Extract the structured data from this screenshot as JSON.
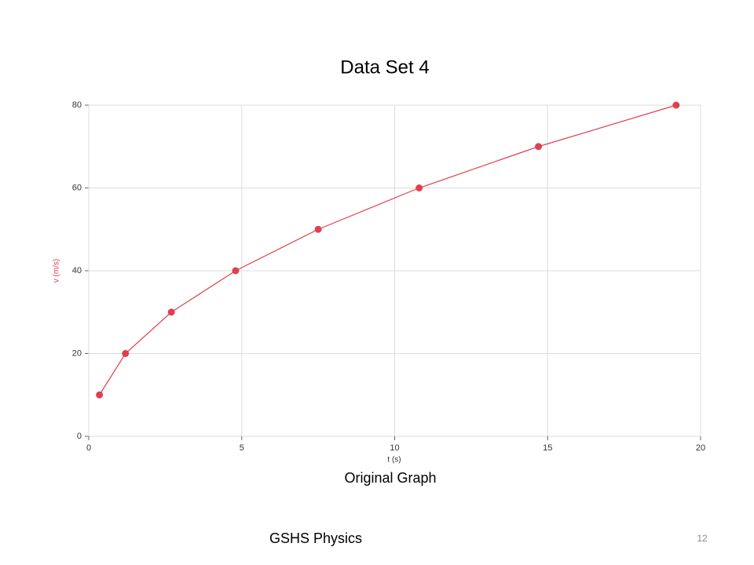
{
  "chart_data": {
    "type": "line",
    "title": "Data Set 4",
    "x_label": "t (s)",
    "y_label": "v (m/s)",
    "x": [
      0.35,
      1.2,
      2.7,
      4.8,
      7.5,
      10.8,
      14.7,
      19.2
    ],
    "values": [
      10,
      20,
      30,
      40,
      50,
      60,
      70,
      80
    ],
    "color": "#e0404e",
    "xlim": [
      0,
      20
    ],
    "xticks": [
      0,
      5,
      10,
      15,
      20
    ],
    "ylim": [
      0,
      80
    ],
    "yticks": [
      0,
      20,
      40,
      60,
      80
    ],
    "grid": true
  },
  "caption": "Original Graph",
  "footer": "GSHS Physics",
  "slide_number": 12
}
